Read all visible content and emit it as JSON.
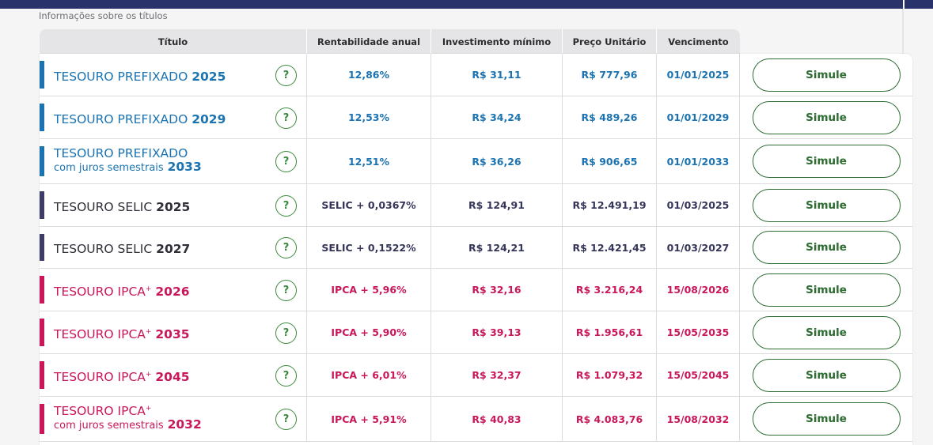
{
  "section_label": "Informações sobre os títulos",
  "headers": {
    "titulo": "Título",
    "rentabilidade": "Rentabilidade anual",
    "investimento": "Investimento mínimo",
    "preco": "Preço Unitário",
    "vencimento": "Vencimento"
  },
  "help_symbol": "?",
  "button_label": "Simule",
  "colors": {
    "prefixado": "#1b73b1",
    "selic": "#3d3d68",
    "ipca": "#c8175a",
    "button": "#2f6e33",
    "topbar": "#2a326b"
  },
  "rows": [
    {
      "name": "TESOURO PREFIXADO",
      "sup": "",
      "sub": "",
      "year": "2025",
      "rent": "12,86%",
      "inv": "R$ 31,11",
      "preco": "R$ 777,96",
      "venc": "01/01/2025"
    },
    {
      "name": "TESOURO PREFIXADO",
      "sup": "",
      "sub": "",
      "year": "2029",
      "rent": "12,53%",
      "inv": "R$ 34,24",
      "preco": "R$ 489,26",
      "venc": "01/01/2029"
    },
    {
      "name": "TESOURO PREFIXADO",
      "sup": "",
      "sub": "com juros semestrais",
      "year": "2033",
      "rent": "12,51%",
      "inv": "R$ 36,26",
      "preco": "R$ 906,65",
      "venc": "01/01/2033"
    },
    {
      "name": "TESOURO SELIC",
      "sup": "",
      "sub": "",
      "year": "2025",
      "rent": "SELIC + 0,0367%",
      "inv": "R$ 124,91",
      "preco": "R$ 12.491,19",
      "venc": "01/03/2025"
    },
    {
      "name": "TESOURO SELIC",
      "sup": "",
      "sub": "",
      "year": "2027",
      "rent": "SELIC + 0,1522%",
      "inv": "R$ 124,21",
      "preco": "R$ 12.421,45",
      "venc": "01/03/2027"
    },
    {
      "name": "TESOURO IPCA",
      "sup": "+",
      "sub": "",
      "year": "2026",
      "rent": "IPCA + 5,96%",
      "inv": "R$ 32,16",
      "preco": "R$ 3.216,24",
      "venc": "15/08/2026"
    },
    {
      "name": "TESOURO IPCA",
      "sup": "+",
      "sub": "",
      "year": "2035",
      "rent": "IPCA + 5,90%",
      "inv": "R$ 39,13",
      "preco": "R$ 1.956,61",
      "venc": "15/05/2035"
    },
    {
      "name": "TESOURO IPCA",
      "sup": "+",
      "sub": "",
      "year": "2045",
      "rent": "IPCA + 6,01%",
      "inv": "R$ 32,37",
      "preco": "R$ 1.079,32",
      "venc": "15/05/2045"
    },
    {
      "name": "TESOURO IPCA",
      "sup": "+",
      "sub": "com juros semestrais",
      "year": "2032",
      "rent": "IPCA + 5,91%",
      "inv": "R$ 40,83",
      "preco": "R$ 4.083,76",
      "venc": "15/08/2032"
    }
  ]
}
